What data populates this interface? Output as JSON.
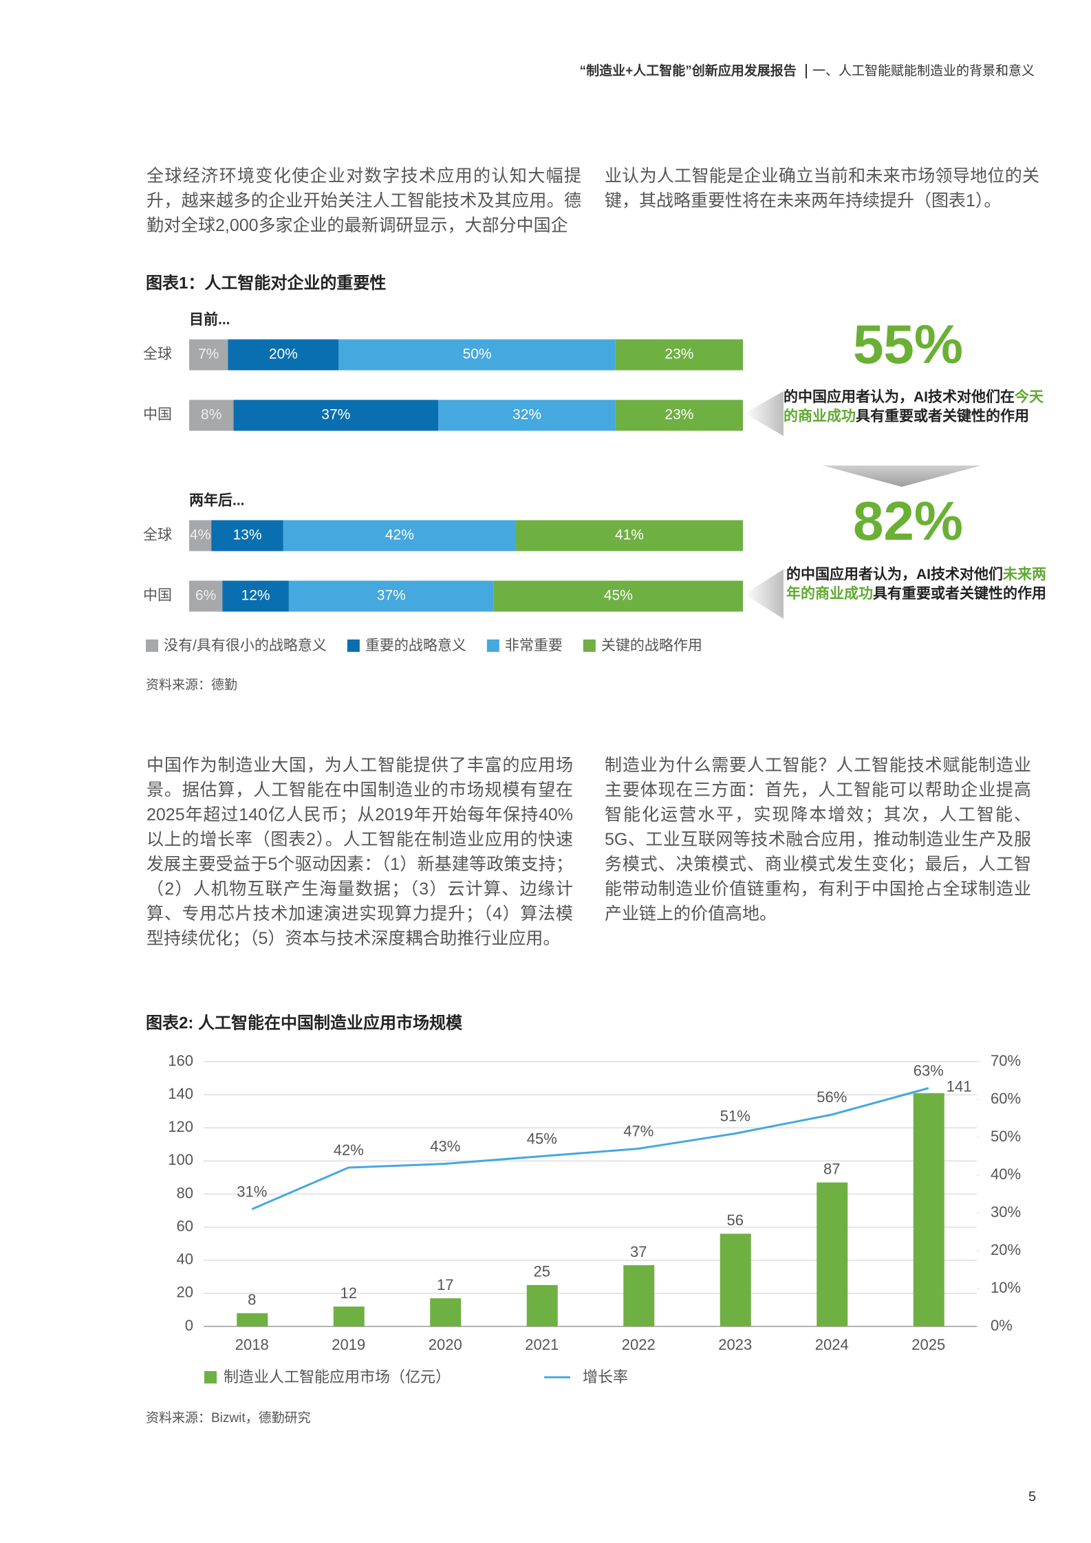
{
  "header": {
    "report_title": "“制造业+人工智能”创新应用发展报告",
    "section": "一、人工智能赋能制造业的背景和意义"
  },
  "intro": [
    "全球经济环境变化使企业对数字技术应用的认知大幅提升，越来越多的企业开始关注人工智能技术及其应用。德勤对全球2,000多家企业的最新调研显示，大部分中国企",
    "业认为人工智能是企业确立当前和未来市场领导地位的关键，其战略重要性将在未来两年持续提升（图表1）。"
  ],
  "body": [
    "中国作为制造业大国，为人工智能提供了丰富的应用场景。据估算，人工智能在中国制造业的市场规模有望在2025年超过140亿人民币；从2019年开始每年保持40%以上的增长率（图表2）。人工智能在制造业应用的快速发展主要受益于5个驱动因素：（1）新基建等政策支持；（2）人机物互联产生海量数据；（3）云计算、边缘计算、专用芯片技术加速演进实现算力提升；（4）算法模型持续优化；（5）资本与技术深度耦合助推行业应用。",
    "制造业为什么需要人工智能？人工智能技术赋能制造业主要体现在三方面：首先，人工智能可以帮助企业提高智能化运营水平，实现降本增效；其次，人工智能、5G、工业互联网等技术融合应用，推动制造业生产及服务模式、决策模式、商业模式发生变化；最后，人工智能带动制造业价值链重构，有利于中国抢占全球制造业产业链上的价值高地。"
  ],
  "chart_data": [
    {
      "type": "stacked_bar",
      "title": "图表1：人工智能对企业的重要性",
      "groups": [
        {
          "label": "目前...",
          "categories": [
            "全球",
            "中国"
          ]
        },
        {
          "label": "两年后...",
          "categories": [
            "全球",
            "中国"
          ]
        }
      ],
      "xlim": [
        0,
        100
      ],
      "series": [
        {
          "name": "没有/具有很小的战略意义",
          "color": "#a7a8aa",
          "values": [
            7,
            8,
            4,
            6
          ],
          "value_labels": [
            "7%",
            "8%",
            "4%",
            "6%"
          ]
        },
        {
          "name": "重要的战略意义",
          "color": "#0a6fb0",
          "values": [
            20,
            37,
            13,
            12
          ],
          "value_labels": [
            "20%",
            "37%",
            "13%",
            "12%"
          ]
        },
        {
          "name": "非常重要",
          "color": "#45a8de",
          "values": [
            50,
            32,
            42,
            37
          ],
          "value_labels": [
            "50%",
            "32%",
            "42%",
            "37%"
          ]
        },
        {
          "name": "关键的战略作用",
          "color": "#6fb043",
          "values": [
            23,
            23,
            41,
            45
          ],
          "value_labels": [
            "23%",
            "23%",
            "41%",
            "45%"
          ]
        }
      ],
      "callouts": [
        {
          "stat": "55%",
          "text": [
            "的中国应用者认为，AI技术对他们在",
            "今天的商业成功",
            "具有重要或者关键性的作用"
          ]
        },
        {
          "stat": "82%",
          "text": [
            "的中国应用者认为，AI技术对他们",
            "未来两年的商业成功",
            "具有重要或者关键性的作用"
          ]
        }
      ],
      "source": "资料来源：德勤"
    },
    {
      "type": "bar_line",
      "title": "图表2: 人工智能在中国制造业应用市场规模",
      "categories": [
        "2018",
        "2019",
        "2020",
        "2021",
        "2022",
        "2023",
        "2024",
        "2025"
      ],
      "ylim": [
        0,
        160
      ],
      "yticks": [
        0,
        20,
        40,
        60,
        80,
        100,
        120,
        140,
        160
      ],
      "y2lim": [
        0,
        70
      ],
      "y2ticks": [
        {
          "value": 0,
          "label": "0%"
        },
        {
          "value": 10,
          "label": "10%"
        },
        {
          "value": 20,
          "label": "20%"
        },
        {
          "value": 30,
          "label": "30%"
        },
        {
          "value": 40,
          "label": "40%"
        },
        {
          "value": 50,
          "label": "50%"
        },
        {
          "value": 60,
          "label": "60%"
        },
        {
          "value": 70,
          "label": "70%"
        }
      ],
      "grid": true,
      "series": [
        {
          "name": "制造业人工智能应用市场（亿元）",
          "type": "bar",
          "color": "#6fb043",
          "values": [
            8,
            12,
            17,
            25,
            37,
            56,
            87,
            141
          ]
        },
        {
          "name": "增长率",
          "type": "line",
          "axis": "y2",
          "color": "#45a8de",
          "values": [
            31,
            42,
            43,
            45,
            47,
            51,
            56,
            63
          ],
          "value_labels": [
            "31%",
            "42%",
            "43%",
            "45%",
            "47%",
            "51%",
            "56%",
            "63%"
          ]
        }
      ],
      "source": "资料来源：Bizwit，德勤研究"
    }
  ],
  "page_number": "5"
}
